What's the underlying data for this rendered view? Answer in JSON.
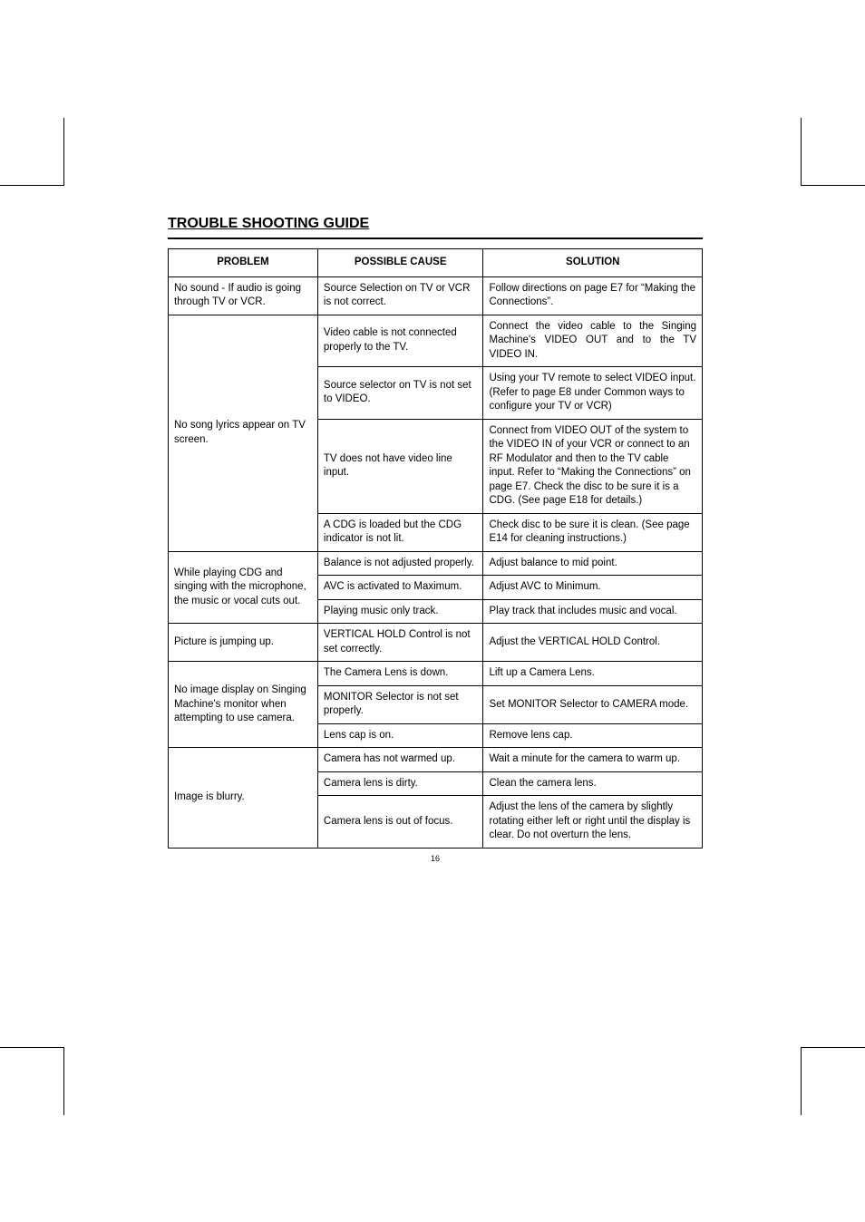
{
  "page": {
    "title": "TROUBLE SHOOTING GUIDE",
    "number": "16"
  },
  "table": {
    "headers": {
      "problem": "PROBLEM",
      "cause": "POSSIBLE CAUSE",
      "solution": "SOLUTION"
    },
    "col_widths_pct": [
      28,
      31,
      41
    ],
    "border_color": "#000000",
    "font_size_pt": 9,
    "rows": [
      {
        "problem": "No sound - If audio is going through TV or VCR.",
        "cause": "Source Selection on TV or VCR is not correct.",
        "solution": "Follow directions on page E7 for “Making the Connections”."
      },
      {
        "problem": "No song lyrics appear on TV screen.",
        "problem_rowspan": 4,
        "cause": "Video cable is not connected properly to the TV.",
        "solution": "Connect the video cable to the Singing Machine's VIDEO OUT and to the TV VIDEO IN.",
        "solution_justify": true
      },
      {
        "cause": "Source selector on TV is not set to VIDEO.",
        "solution": "Using your TV remote to select VIDEO input. (Refer to page E8 under Common ways to configure your TV or VCR)"
      },
      {
        "cause": "TV does not have video line input.",
        "solution": "Connect from VIDEO OUT of the system to the VIDEO IN of your VCR or connect to an RF Modulator and then to the TV cable input. Refer to “Making the Connections” on page E7. Check the disc to be sure it is a CDG. (See page E18 for details.)"
      },
      {
        "cause": "A CDG is loaded but the CDG indicator is not lit.",
        "solution": "Check disc to be sure it is clean. (See page E14 for cleaning instructions.)"
      },
      {
        "problem": "While playing CDG and singing with the microphone, the music or vocal cuts out.",
        "problem_rowspan": 3,
        "cause": "Balance is not adjusted properly.",
        "solution": "Adjust balance to mid point."
      },
      {
        "cause": "AVC is activated to Maximum.",
        "solution": "Adjust AVC to Minimum."
      },
      {
        "cause": "Playing music only track.",
        "solution": "Play track that includes music and vocal."
      },
      {
        "problem": "Picture is jumping up.",
        "cause": "VERTICAL HOLD Control is not set correctly.",
        "solution": "Adjust the VERTICAL HOLD Control."
      },
      {
        "problem": "No image display on Singing Machine's monitor when attempting to use camera.",
        "problem_rowspan": 3,
        "cause": "The Camera Lens is down.",
        "solution": "Lift up a Camera Lens."
      },
      {
        "cause": "MONITOR Selector is not set properly.",
        "solution": "Set MONITOR Selector to CAMERA mode."
      },
      {
        "cause": "Lens cap is on.",
        "solution": "Remove lens cap."
      },
      {
        "problem": "Image is blurry.",
        "problem_rowspan": 3,
        "cause": "Camera has not warmed up.",
        "solution": "Wait a minute for the camera to warm up."
      },
      {
        "cause": "Camera lens is dirty.",
        "solution": "Clean the camera lens."
      },
      {
        "cause": "Camera lens is out of focus.",
        "solution": "Adjust the lens of the camera by slightly rotating either left or right until the display is clear. Do not overturn the lens."
      }
    ]
  },
  "style": {
    "background_color": "#ffffff",
    "text_color": "#000000",
    "title_fontsize_pt": 12,
    "body_fontsize_pt": 9
  }
}
